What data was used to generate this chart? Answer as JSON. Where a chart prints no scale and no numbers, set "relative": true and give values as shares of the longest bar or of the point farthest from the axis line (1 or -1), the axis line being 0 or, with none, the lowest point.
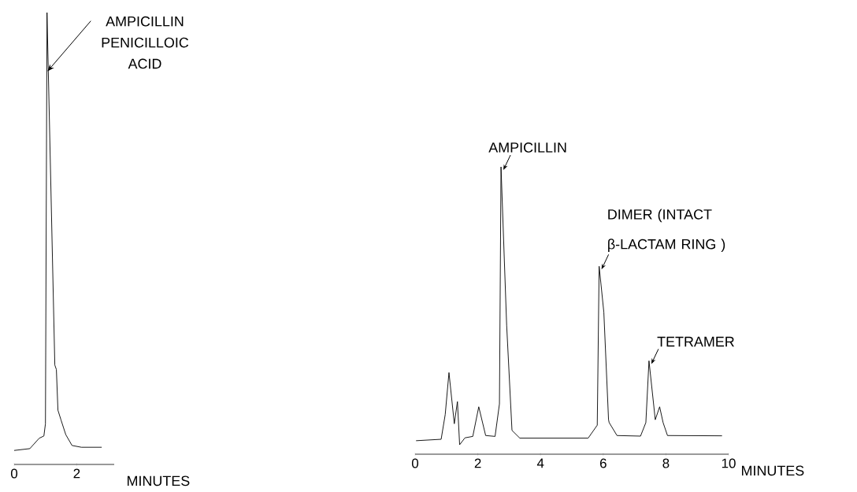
{
  "chart_data": [
    {
      "type": "line",
      "relative": true,
      "xlabel": "MINUTES",
      "xlim": [
        0,
        3.2
      ],
      "xticks": [
        0,
        2
      ],
      "series": [
        {
          "color": "#000000",
          "x": [
            0,
            0.5,
            0.8,
            0.95,
            1.0,
            1.05,
            1.3,
            1.35,
            1.4,
            1.5,
            1.65,
            1.85,
            2.15,
            2.8
          ],
          "values": [
            0.031,
            0.035,
            0.058,
            0.063,
            0.09,
            1.0,
            0.22,
            0.21,
            0.12,
            0.098,
            0.066,
            0.042,
            0.038,
            0.038
          ]
        }
      ],
      "annotations": [
        {
          "text": "AMPICILLIN PENICILLOIC ACID",
          "x": 1.04,
          "y": 0.87
        }
      ]
    },
    {
      "type": "line",
      "relative": true,
      "xlabel": "MINUTES",
      "xlim": [
        0,
        10
      ],
      "xticks": [
        0,
        2,
        4,
        6,
        8,
        10
      ],
      "series": [
        {
          "color": "#000000",
          "x": [
            0.03,
            0.83,
            0.96,
            1.08,
            1.25,
            1.35,
            1.42,
            1.59,
            1.84,
            2.03,
            2.25,
            2.55,
            2.69,
            2.74,
            2.92,
            3.09,
            3.34,
            5.52,
            5.81,
            5.87,
            6.02,
            6.17,
            6.19,
            6.44,
            7.19,
            7.36,
            7.46,
            7.66,
            7.8,
            7.91,
            8.05,
            9.79
          ],
          "values": [
            0.047,
            0.052,
            0.138,
            0.284,
            0.106,
            0.183,
            0.033,
            0.057,
            0.062,
            0.165,
            0.065,
            0.062,
            0.175,
            1.0,
            0.449,
            0.083,
            0.056,
            0.056,
            0.101,
            0.654,
            0.494,
            0.12,
            0.11,
            0.065,
            0.063,
            0.11,
            0.325,
            0.12,
            0.165,
            0.11,
            0.065,
            0.064
          ]
        }
      ],
      "annotations": [
        {
          "text": "AMPICILLIN",
          "x": 2.74,
          "y": 1.0
        },
        {
          "text": "DIMER (INTACT β-LACTAM RING )",
          "x": 5.87,
          "y": 0.654
        },
        {
          "text": "TETRAMER",
          "x": 7.46,
          "y": 0.325
        }
      ]
    }
  ]
}
